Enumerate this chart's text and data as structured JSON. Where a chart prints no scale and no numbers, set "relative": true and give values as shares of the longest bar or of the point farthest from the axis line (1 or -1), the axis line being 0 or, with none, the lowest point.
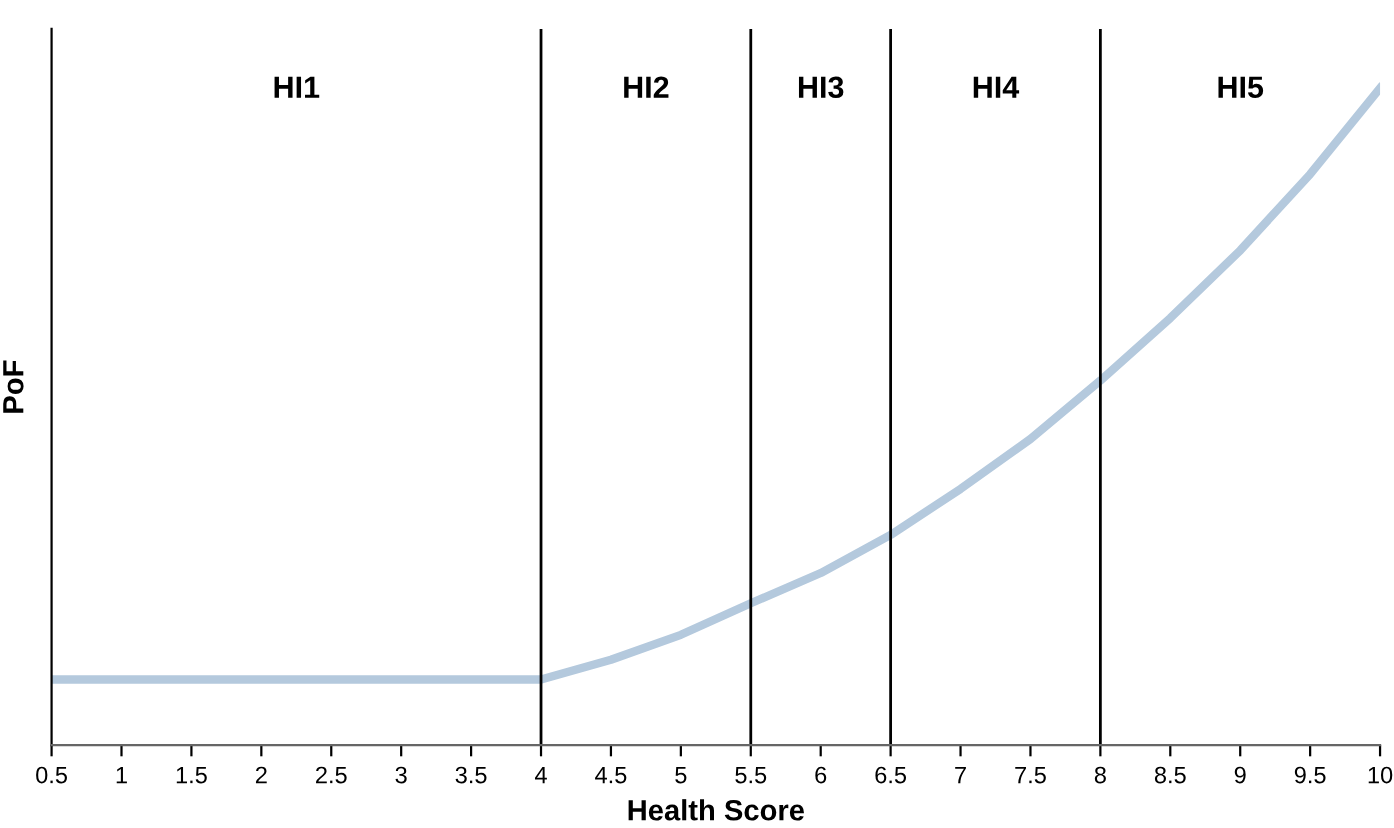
{
  "chart_data": {
    "type": "line",
    "xlabel": "Health Score",
    "ylabel": "PoF",
    "relative": true,
    "xlim": [
      0.5,
      10
    ],
    "xticks": [
      0.5,
      1,
      1.5,
      2,
      2.5,
      3,
      3.5,
      4,
      4.5,
      5,
      5.5,
      6,
      6.5,
      7,
      7.5,
      8,
      8.5,
      9,
      9.5,
      10
    ],
    "series": [
      {
        "color": "#b4c9dd",
        "x": [
          0.5,
          1,
          1.5,
          2,
          2.5,
          3,
          3.5,
          4,
          4.5,
          5,
          5.5,
          6,
          6.5,
          7,
          7.5,
          8,
          8.5,
          9,
          9.5,
          10
        ],
        "values": [
          0.1,
          0.1,
          0.1,
          0.1,
          0.1,
          0.1,
          0.1,
          0.1,
          0.13,
          0.168,
          0.216,
          0.262,
          0.32,
          0.39,
          0.466,
          0.555,
          0.65,
          0.753,
          0.869,
          1.0
        ]
      }
    ],
    "ref_lines": [
      {
        "axis": "x",
        "value": 4,
        "color": "#000000"
      },
      {
        "axis": "x",
        "value": 5.5,
        "color": "#000000"
      },
      {
        "axis": "x",
        "value": 6.5,
        "color": "#000000"
      },
      {
        "axis": "x",
        "value": 8,
        "color": "#000000"
      }
    ],
    "annotations": [
      "HI1",
      "HI2",
      "HI3",
      "HI4",
      "HI5"
    ],
    "grid": false,
    "legend": false,
    "marker": "none",
    "line_style": "solid"
  }
}
